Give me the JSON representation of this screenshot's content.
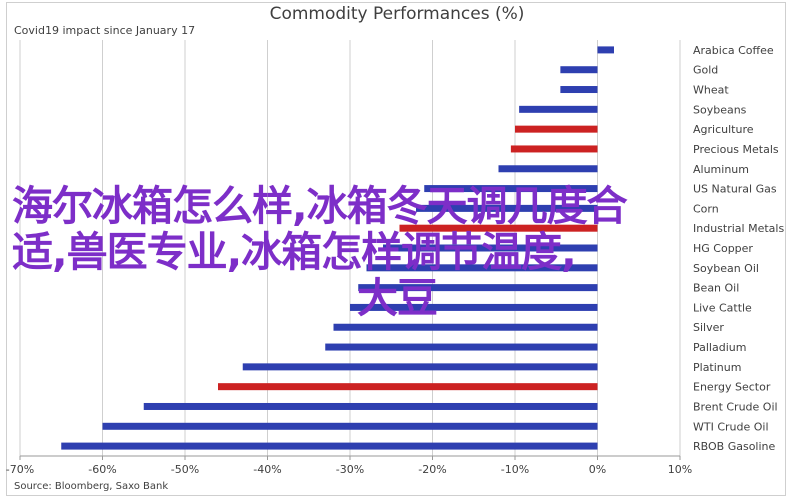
{
  "chart_data": {
    "type": "bar",
    "orientation": "horizontal",
    "title": "Commodity Performances (%)",
    "subtitle": "Covid19 impact since January 17",
    "source": "Source: Bloomberg, Saxo Bank",
    "xlim": [
      -70,
      10
    ],
    "xticks": [
      "-70%",
      "-60%",
      "-50%",
      "-40%",
      "-30%",
      "-20%",
      "-10%",
      "0%",
      "10%"
    ],
    "xtick_values": [
      -70,
      -60,
      -50,
      -40,
      -30,
      -20,
      -10,
      0,
      10
    ],
    "grid": "vertical",
    "colors": {
      "default": "#2e3fb0",
      "highlight": "#cc2222"
    },
    "categories": [
      "Arabica Coffee",
      "Gold",
      "Wheat",
      "Soybeans",
      "Agriculture",
      "Precious Metals",
      "Aluminum",
      "US Natural Gas",
      "Corn",
      "Industrial Metals",
      "HG Copper",
      "Soybean Oil",
      "Bean Oil",
      "Live Cattle",
      "Silver",
      "Palladium",
      "Platinum",
      "Energy Sector",
      "Brent Crude Oil",
      "WTI Crude Oil",
      "RBOB Gasoline"
    ],
    "values": [
      2.0,
      -4.5,
      -4.5,
      -9.5,
      -10.0,
      -10.5,
      -12.0,
      -21.0,
      -22.0,
      -24.0,
      -26.0,
      -28.0,
      -29.0,
      -30.0,
      -32.0,
      -33.0,
      -43.0,
      -46.0,
      -55.0,
      -60.0,
      -65.0
    ],
    "highlight": [
      false,
      false,
      false,
      false,
      true,
      true,
      false,
      false,
      false,
      true,
      false,
      false,
      false,
      false,
      false,
      false,
      false,
      true,
      false,
      false,
      false
    ]
  },
  "overlay_text": {
    "line1": "海尔冰箱怎么样,冰箱冬天调几度合",
    "line2": "适,兽医专业,冰箱怎样调节温度,",
    "line3": "大豆"
  }
}
